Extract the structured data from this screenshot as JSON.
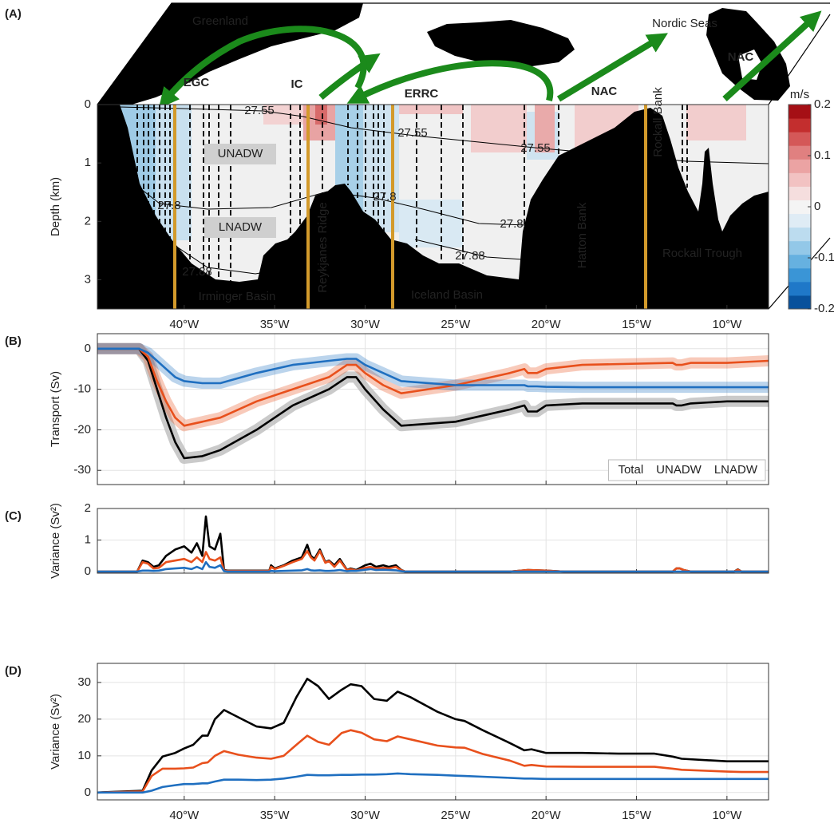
{
  "chart_data": [
    {
      "type": "section",
      "panel_label": "(A)",
      "ylabel": "Depth (km)",
      "xlim": [
        -44.8,
        -7.7
      ],
      "ylim": [
        3.5,
        0
      ],
      "xticks": [
        {
          "value": -40,
          "label": "40°W"
        },
        {
          "value": -35,
          "label": "35°W"
        },
        {
          "value": -30,
          "label": "30°W"
        },
        {
          "value": -25,
          "label": "25°W"
        },
        {
          "value": -20,
          "label": "20°W"
        },
        {
          "value": -15,
          "label": "15°W"
        },
        {
          "value": -10,
          "label": "10°W"
        }
      ],
      "yticks": [
        0,
        1,
        2,
        3
      ],
      "grid": false,
      "colorbar": {
        "label": "m/s",
        "lim": [
          -0.2,
          0.2
        ],
        "ticks": [
          0.2,
          0.1,
          0,
          -0.1,
          -0.2
        ]
      },
      "annotations": [
        "Greenland",
        "Nordic Seas",
        "EGC",
        "IC",
        "ERRC",
        "NAC",
        "NAC",
        "UNADW",
        "LNADW",
        "Irminger Basin",
        "Reykjanes Ridge",
        "Iceland Basin",
        "Hatton Bank",
        "Rockall Bank",
        "Rockall Trough"
      ],
      "contour_labels": [
        "27.55",
        "27.55",
        "27.55",
        "27.8",
        "27.8",
        "27.8",
        "27.88",
        "27.88"
      ]
    },
    {
      "type": "line",
      "panel_label": "(B)",
      "ylabel": "Transport (Sv)",
      "xlim": [
        -44.8,
        -7.7
      ],
      "ylim": [
        -33.5,
        3.7
      ],
      "xticks": [
        -40,
        -35,
        -30,
        -25,
        -20,
        -15,
        -10
      ],
      "yticks": [
        0,
        -10,
        -20,
        -30
      ],
      "grid": true,
      "shaded_band": true,
      "legend": "lower right",
      "x": [
        -44.8,
        -42.5,
        -42,
        -41.5,
        -41,
        -40.5,
        -40,
        -39,
        -38,
        -36,
        -34,
        -32,
        -31,
        -30.5,
        -30,
        -29,
        -28,
        -25,
        -22,
        -21.2,
        -21,
        -20.5,
        -20,
        -18,
        -13,
        -12.8,
        -12.5,
        -12,
        -10,
        -7.7
      ],
      "series": [
        {
          "name": "Total",
          "color": "#000000",
          "values": [
            0,
            0,
            -3,
            -10,
            -17,
            -23,
            -27,
            -26.5,
            -25,
            -20,
            -14,
            -10,
            -7,
            -7,
            -10,
            -15,
            -19,
            -18,
            -15,
            -14,
            -15.5,
            -15.5,
            -14,
            -13.5,
            -13.5,
            -14,
            -14,
            -13.5,
            -13,
            -13
          ]
        },
        {
          "name": "UNADW",
          "color": "#e8501c",
          "values": [
            0,
            0,
            -2,
            -8,
            -13,
            -17,
            -19,
            -18,
            -17,
            -13,
            -10,
            -7,
            -4,
            -4,
            -6,
            -9,
            -11,
            -9,
            -6,
            -5,
            -6,
            -6,
            -5,
            -4,
            -3.5,
            -4,
            -4,
            -3.5,
            -3.5,
            -3
          ]
        },
        {
          "name": "LNADW",
          "color": "#1f6fc0",
          "values": [
            0,
            0,
            -1,
            -3,
            -5,
            -7,
            -8,
            -8.5,
            -8.5,
            -6,
            -4,
            -3,
            -2.5,
            -2.5,
            -4,
            -6,
            -8,
            -9,
            -9,
            -9,
            -9.3,
            -9.3,
            -9.4,
            -9.5,
            -9.5,
            -9.5,
            -9.5,
            -9.5,
            -9.5,
            -9.5
          ]
        }
      ]
    },
    {
      "type": "line",
      "panel_label": "(C)",
      "ylabel": "Variance (Sv²)",
      "xlim": [
        -44.8,
        -7.7
      ],
      "ylim": [
        -0.05,
        2
      ],
      "xticks": [
        -40,
        -35,
        -30,
        -25,
        -20,
        -15,
        -10
      ],
      "yticks": [
        0,
        1,
        2
      ],
      "grid": true,
      "x": [
        -44.8,
        -42.6,
        -42.3,
        -42,
        -41.7,
        -41.4,
        -41,
        -40.5,
        -40,
        -39.6,
        -39.3,
        -39,
        -38.8,
        -38.6,
        -38.3,
        -38,
        -37.8,
        -37.6,
        -35.3,
        -35.2,
        -35,
        -34.5,
        -34,
        -33.5,
        -33.2,
        -33,
        -32.8,
        -32.5,
        -32.2,
        -32,
        -31.7,
        -31.4,
        -31,
        -30.8,
        -30.5,
        -30,
        -29.7,
        -29.4,
        -29,
        -28.7,
        -28.3,
        -28,
        -27.8,
        -22,
        -21,
        -20,
        -19,
        -13,
        -12.8,
        -12.6,
        -12.4,
        -12,
        -9.6,
        -9.4,
        -9.2,
        -7.7
      ],
      "series": [
        {
          "name": "Total",
          "color": "#000000",
          "values": [
            0,
            0,
            0.35,
            0.3,
            0.15,
            0.2,
            0.5,
            0.7,
            0.8,
            0.6,
            0.9,
            0.5,
            1.75,
            0.8,
            0.7,
            1.2,
            0.05,
            0.03,
            0.03,
            0.2,
            0.1,
            0.2,
            0.35,
            0.45,
            0.85,
            0.5,
            0.4,
            0.7,
            0.3,
            0.35,
            0.2,
            0.4,
            0.05,
            0.1,
            0.05,
            0.2,
            0.25,
            0.15,
            0.2,
            0.15,
            0.2,
            0.05,
            0,
            0,
            0.05,
            0.03,
            0,
            0,
            0.1,
            0.1,
            0.05,
            0,
            0,
            0.07,
            0,
            0
          ]
        },
        {
          "name": "UNADW",
          "color": "#e8501c",
          "values": [
            0,
            0,
            0.3,
            0.25,
            0.1,
            0.12,
            0.3,
            0.35,
            0.4,
            0.3,
            0.45,
            0.3,
            0.62,
            0.4,
            0.35,
            0.45,
            0.03,
            0.02,
            0.02,
            0.15,
            0.08,
            0.18,
            0.3,
            0.4,
            0.65,
            0.45,
            0.35,
            0.65,
            0.28,
            0.33,
            0.15,
            0.35,
            0.04,
            0.08,
            0.03,
            0.12,
            0.15,
            0.1,
            0.12,
            0.1,
            0.15,
            0.04,
            0,
            0,
            0.05,
            0.03,
            0,
            0,
            0.1,
            0.1,
            0.05,
            0,
            0,
            0.06,
            0,
            0
          ]
        },
        {
          "name": "LNADW",
          "color": "#1f6fc0",
          "values": [
            0,
            0,
            0.03,
            0.03,
            0.02,
            0.03,
            0.08,
            0.1,
            0.12,
            0.08,
            0.15,
            0.08,
            0.3,
            0.15,
            0.12,
            0.2,
            0.01,
            0,
            0,
            0.02,
            0.01,
            0.02,
            0.03,
            0.04,
            0.08,
            0.04,
            0.03,
            0.04,
            0.02,
            0.02,
            0.03,
            0.05,
            0.01,
            0.02,
            0.02,
            0.06,
            0.08,
            0.05,
            0.06,
            0.05,
            0.04,
            0.01,
            0,
            0,
            0,
            0,
            0,
            0,
            0,
            0,
            0,
            0,
            0,
            0,
            0,
            0
          ]
        }
      ]
    },
    {
      "type": "line",
      "panel_label": "(D)",
      "ylabel": "Variance (Sv²)",
      "xlim": [
        -44.8,
        -7.7
      ],
      "ylim": [
        -2,
        35.2
      ],
      "xticks": [
        {
          "value": -40,
          "label": "40°W"
        },
        {
          "value": -35,
          "label": "35°W"
        },
        {
          "value": -30,
          "label": "30°W"
        },
        {
          "value": -25,
          "label": "25°W"
        },
        {
          "value": -20,
          "label": "20°W"
        },
        {
          "value": -15,
          "label": "15°W"
        },
        {
          "value": -10,
          "label": "10°W"
        }
      ],
      "yticks": [
        0,
        10,
        20,
        30
      ],
      "grid": true,
      "x": [
        -44.8,
        -42.3,
        -41.8,
        -41.2,
        -40.5,
        -40,
        -39.5,
        -39,
        -38.7,
        -38.3,
        -37.8,
        -37,
        -36,
        -35.2,
        -34.5,
        -33.8,
        -33.2,
        -32.6,
        -32,
        -31.3,
        -30.8,
        -30.2,
        -29.5,
        -28.8,
        -28.2,
        -27.5,
        -26,
        -25,
        -24.5,
        -23.5,
        -22,
        -21.2,
        -20.8,
        -20,
        -18,
        -16,
        -14.3,
        -14,
        -13,
        -12.5,
        -10,
        -9.2,
        -7.7
      ],
      "series": [
        {
          "name": "Total",
          "color": "#000000",
          "values": [
            0,
            0.5,
            6,
            9.8,
            10.8,
            12,
            13,
            15.5,
            15.5,
            20,
            22.5,
            20.5,
            18,
            17.5,
            19,
            26,
            31,
            29,
            25.5,
            28,
            29.5,
            29,
            25.5,
            25,
            27.5,
            26,
            22,
            20,
            19.5,
            17,
            13.5,
            11.5,
            11.8,
            10.8,
            10.8,
            10.6,
            10.6,
            10.6,
            9.8,
            9.2,
            8.5,
            8.5,
            8.5
          ]
        },
        {
          "name": "UNADW",
          "color": "#e8501c",
          "values": [
            0,
            0.3,
            4.5,
            6.5,
            6.5,
            6.6,
            6.8,
            8,
            8.2,
            10,
            11.3,
            10.3,
            9.5,
            9.2,
            10,
            13,
            15.5,
            13.8,
            13,
            16.2,
            17,
            16.3,
            14.5,
            14,
            15.3,
            14.5,
            12.8,
            12.3,
            12.2,
            10.5,
            8.7,
            7.3,
            7.5,
            7.1,
            7,
            7,
            7,
            7,
            6.5,
            6.2,
            5.7,
            5.6,
            5.6
          ]
        },
        {
          "name": "LNADW",
          "color": "#1f6fc0",
          "values": [
            0,
            0,
            0.5,
            1.5,
            2,
            2.3,
            2.3,
            2.5,
            2.5,
            3,
            3.5,
            3.5,
            3.4,
            3.5,
            3.8,
            4.3,
            4.8,
            4.7,
            4.7,
            4.8,
            4.8,
            4.9,
            4.9,
            5,
            5.2,
            5,
            4.8,
            4.6,
            4.5,
            4.3,
            4,
            3.8,
            3.8,
            3.7,
            3.7,
            3.7,
            3.7,
            3.7,
            3.7,
            3.7,
            3.7,
            3.7,
            3.7
          ]
        }
      ]
    }
  ]
}
